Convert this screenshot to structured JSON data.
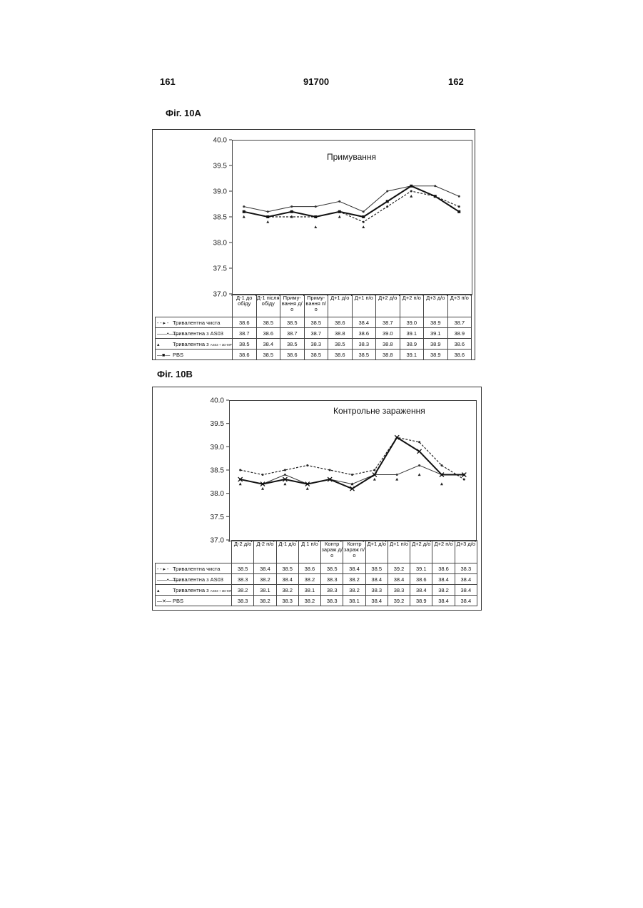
{
  "header": {
    "left": "161",
    "center": "91700",
    "right": "162"
  },
  "figures": [
    {
      "label": "Фіг. 10А",
      "chart_data": {
        "type": "line",
        "title": "Примування",
        "ylim": [
          37.0,
          40.0
        ],
        "yticks": [
          "37.0",
          "37.5",
          "38.0",
          "38.5",
          "39.0",
          "39.5",
          "40.0"
        ],
        "categories": [
          "Д-1 до обіду",
          "Д-1 після обіду",
          "Приму- вання д/о",
          "Приму- вання п/о",
          "Д+1 д/о",
          "Д+1 п/о",
          "Д+2 д/о",
          "Д+2 п/о",
          "Д+3 д/о",
          "Д+3 п/о"
        ],
        "series": [
          {
            "name": "Тривалентна чиста",
            "style": "dashed",
            "color": "#222222",
            "values": [
              38.6,
              38.5,
              38.5,
              38.5,
              38.6,
              38.4,
              38.7,
              39.0,
              38.9,
              38.7
            ],
            "labels": [
              "38.6",
              "38.5",
              "38.5",
              "38.5",
              "38.6",
              "38.4",
              "38.7",
              "39.0",
              "38.9",
              "38.7"
            ]
          },
          {
            "name": "Тривалентна з AS03",
            "style": "thin",
            "color": "#333333",
            "values": [
              38.7,
              38.6,
              38.7,
              38.7,
              38.8,
              38.6,
              39.0,
              39.1,
              39.1,
              38.9
            ],
            "labels": [
              "38.7",
              "38.6",
              "38.7",
              "38.7",
              "38.8",
              "38.6",
              "39.0",
              "39.1",
              "39.1",
              "38.9"
            ]
          },
          {
            "name": "Тривалентна з",
            "name_sub": "AS03 + 3D-MPL",
            "style": "points",
            "color": "#222222",
            "values": [
              38.5,
              38.4,
              38.5,
              38.3,
              38.5,
              38.3,
              38.8,
              38.9,
              38.9,
              38.6
            ],
            "labels": [
              "38.5",
              "38.4",
              "38.5",
              "38.3",
              "38.5",
              "38.3",
              "38.8",
              "38.9",
              "38.9",
              "38.6"
            ]
          },
          {
            "name": "PBS",
            "style": "bold",
            "color": "#111111",
            "values": [
              38.6,
              38.5,
              38.6,
              38.5,
              38.6,
              38.5,
              38.8,
              39.1,
              38.9,
              38.6
            ],
            "labels": [
              "38.6",
              "38.5",
              "38.6",
              "38.5",
              "38.6",
              "38.5",
              "38.8",
              "39.1",
              "38.9",
              "38.6"
            ]
          }
        ]
      }
    },
    {
      "label": "Фіг. 10В",
      "chart_data": {
        "type": "line",
        "title": "Контрольне зараження",
        "ylim": [
          37.0,
          40.0
        ],
        "yticks": [
          "37.0",
          "37.5",
          "38.0",
          "38.5",
          "39.0",
          "39.5",
          "40.0"
        ],
        "categories": [
          "Д-2 д/о",
          "Д-2 п/о",
          "Д-1 д/о",
          "Д 1 п/о",
          "Контр зараж д/о",
          "Контр зараж п/о",
          "Д+1 д/о",
          "Д+1 п/о",
          "Д+2 д/о",
          "Д+2 п/о",
          "Д+3 д/о"
        ],
        "series": [
          {
            "name": "Тривалентна чиста",
            "style": "dashed",
            "color": "#222222",
            "values": [
              38.5,
              38.4,
              38.5,
              38.6,
              38.5,
              38.4,
              38.5,
              39.2,
              39.1,
              38.6,
              38.3
            ],
            "labels": [
              "38.5",
              "38.4",
              "38.5",
              "38.6",
              "38.5",
              "38.4",
              "38.5",
              "39.2",
              "39.1",
              "38.6",
              "38.3"
            ]
          },
          {
            "name": "Тривалентна з AS03",
            "style": "thin",
            "color": "#333333",
            "values": [
              38.3,
              38.2,
              38.4,
              38.2,
              38.3,
              38.2,
              38.4,
              38.4,
              38.6,
              38.4,
              38.4
            ],
            "labels": [
              "38.3",
              "38.2",
              "38.4",
              "38.2",
              "38.3",
              "38.2",
              "38.4",
              "38.4",
              "38.6",
              "38.4",
              "38.4"
            ]
          },
          {
            "name": "Тривалентна з",
            "name_sub": "AS03 + 3D-MPL",
            "style": "points",
            "color": "#222222",
            "values": [
              38.2,
              38.1,
              38.2,
              38.1,
              38.3,
              38.2,
              38.3,
              38.3,
              38.4,
              38.2,
              38.4
            ],
            "labels": [
              "38.2",
              "38.1",
              "38.2",
              "38.1",
              "38.3",
              "38.2",
              "38.3",
              "38.3",
              "38.4",
              "38.2",
              "38.4"
            ]
          },
          {
            "name": "PBS",
            "style": "bold-x",
            "color": "#111111",
            "values": [
              38.3,
              38.2,
              38.3,
              38.2,
              38.3,
              38.1,
              38.4,
              39.2,
              38.9,
              38.4,
              38.4
            ],
            "labels": [
              "38.3",
              "38.2",
              "38.3",
              "38.2",
              "38.3",
              "38.1",
              "38.4",
              "39.2",
              "38.9",
              "38.4",
              "38.4"
            ]
          }
        ]
      }
    }
  ]
}
